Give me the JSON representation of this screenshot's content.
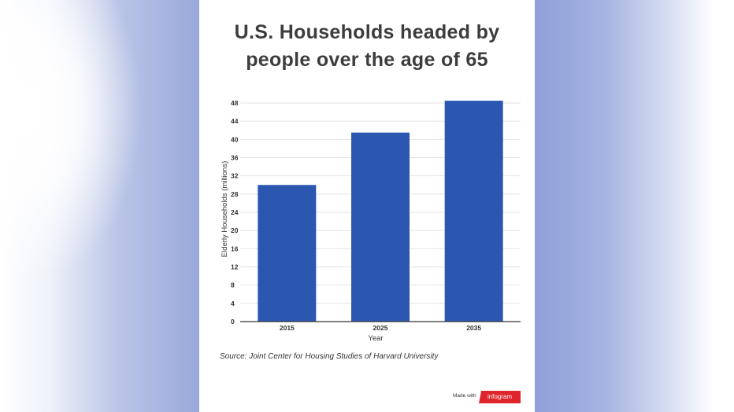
{
  "title_line1": "U.S. Households headed by",
  "title_line2": "people over the age of 65",
  "source": "Source: Joint Center for Housing Studies of Harvard University",
  "footer": {
    "made_with": "Made with",
    "brand": "infogram"
  },
  "colors": {
    "bar": "#2b57b1",
    "grid": "#e2e2e2",
    "axis": "#333333",
    "text": "#333333"
  },
  "chart_data": {
    "type": "bar",
    "categories": [
      "2015",
      "2025",
      "2035"
    ],
    "values": [
      30,
      41.5,
      49.5
    ],
    "xlabel": "Year",
    "ylabel": "Elderly Households (millions)",
    "ylim": [
      0,
      48
    ],
    "yticks": [
      0,
      4,
      8,
      12,
      16,
      20,
      24,
      28,
      32,
      36,
      40,
      44,
      48
    ],
    "grid": true,
    "legend": "none"
  }
}
